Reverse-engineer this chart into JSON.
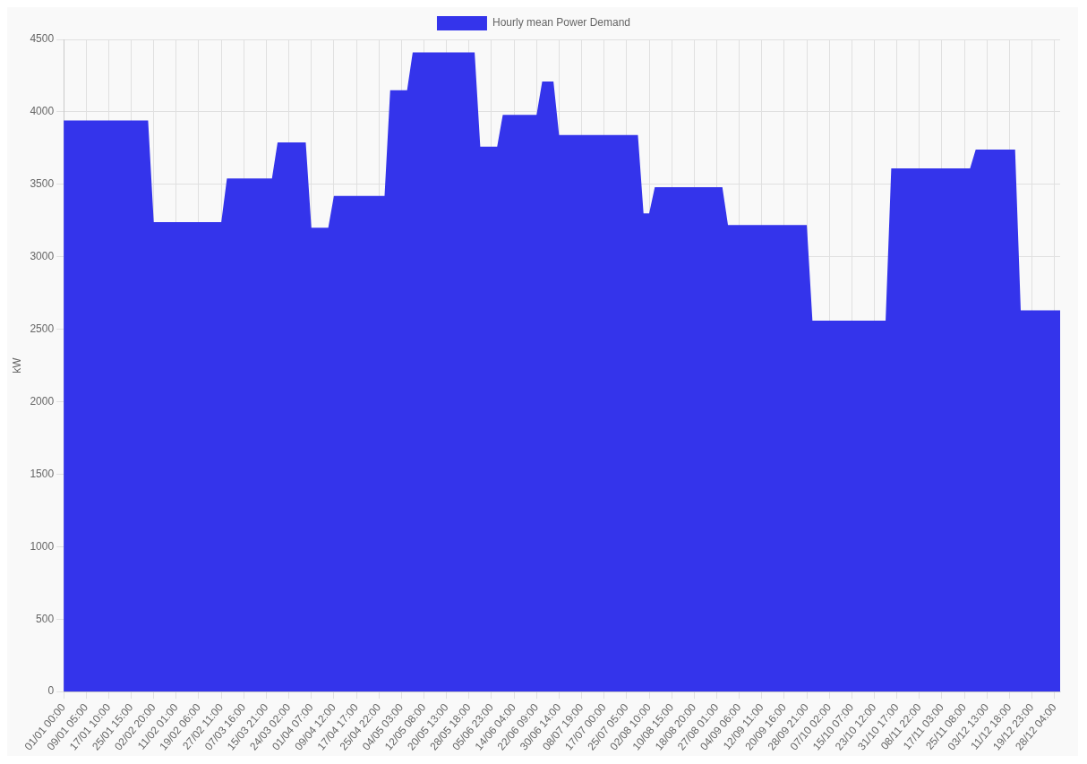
{
  "chart_data": {
    "type": "area",
    "ylabel": "kW",
    "legend": "top",
    "grid": true,
    "categories": [
      "01/01 00:00",
      null,
      null,
      null,
      "09/01 05:00",
      null,
      null,
      null,
      "17/01 10:00",
      null,
      null,
      null,
      "25/01 15:00",
      null,
      null,
      null,
      "02/02 20:00",
      null,
      null,
      null,
      "11/02 01:00",
      null,
      null,
      null,
      "19/02 06:00",
      null,
      null,
      null,
      "27/02 11:00",
      null,
      null,
      null,
      "07/03 16:00",
      null,
      null,
      null,
      "15/03 21:00",
      null,
      null,
      null,
      "24/03 02:00",
      null,
      null,
      null,
      "01/04 07:00",
      null,
      null,
      null,
      "09/04 12:00",
      null,
      null,
      null,
      "17/04 17:00",
      null,
      null,
      null,
      "25/04 22:00",
      null,
      null,
      null,
      "04/05 03:00",
      null,
      null,
      null,
      "12/05 08:00",
      null,
      null,
      null,
      "20/05 13:00",
      null,
      null,
      null,
      "28/05 18:00",
      null,
      null,
      null,
      "05/06 23:00",
      null,
      null,
      null,
      "14/06 04:00",
      null,
      null,
      null,
      "22/06 09:00",
      null,
      null,
      null,
      "30/06 14:00",
      null,
      null,
      null,
      "08/07 19:00",
      null,
      null,
      null,
      "17/07 00:00",
      null,
      null,
      null,
      "25/07 05:00",
      null,
      null,
      null,
      "02/08 10:00",
      null,
      null,
      null,
      "10/08 15:00",
      null,
      null,
      null,
      "18/08 20:00",
      null,
      null,
      null,
      "27/08 01:00",
      null,
      null,
      null,
      "04/09 06:00",
      null,
      null,
      null,
      "12/09 11:00",
      null,
      null,
      null,
      "20/09 16:00",
      null,
      null,
      null,
      "28/09 21:00",
      null,
      null,
      null,
      "07/10 02:00",
      null,
      null,
      null,
      "15/10 07:00",
      null,
      null,
      null,
      "23/10 12:00",
      null,
      null,
      null,
      "31/10 17:00",
      null,
      null,
      null,
      "08/11 22:00",
      null,
      null,
      null,
      "17/11 03:00",
      null,
      null,
      null,
      "25/11 08:00",
      null,
      null,
      null,
      "03/12 13:00",
      null,
      null,
      null,
      "11/12 18:00",
      null,
      null,
      null,
      "19/12 23:00",
      null,
      null,
      null,
      "28/12 04:00",
      null
    ],
    "series": [
      {
        "name": "Hourly mean Power Demand",
        "color": "#3434eb",
        "values": [
          3940,
          3940,
          3940,
          3940,
          3940,
          3940,
          3940,
          3940,
          3940,
          3940,
          3940,
          3940,
          3940,
          3940,
          3940,
          3940,
          3240,
          3240,
          3240,
          3240,
          3240,
          3240,
          3240,
          3240,
          3240,
          3240,
          3240,
          3240,
          3240,
          3540,
          3540,
          3540,
          3540,
          3540,
          3540,
          3540,
          3540,
          3540,
          3790,
          3790,
          3790,
          3790,
          3790,
          3790,
          3200,
          3200,
          3200,
          3200,
          3420,
          3420,
          3420,
          3420,
          3420,
          3420,
          3420,
          3420,
          3420,
          3420,
          4150,
          4150,
          4150,
          4150,
          4410,
          4410,
          4410,
          4410,
          4410,
          4410,
          4410,
          4410,
          4410,
          4410,
          4410,
          4410,
          3760,
          3760,
          3760,
          3760,
          3980,
          3980,
          3980,
          3980,
          3980,
          3980,
          3980,
          4210,
          4210,
          4210,
          3840,
          3840,
          3840,
          3840,
          3840,
          3840,
          3840,
          3840,
          3840,
          3840,
          3840,
          3840,
          3840,
          3840,
          3840,
          3300,
          3300,
          3480,
          3480,
          3480,
          3480,
          3480,
          3480,
          3480,
          3480,
          3480,
          3480,
          3480,
          3480,
          3480,
          3220,
          3220,
          3220,
          3220,
          3220,
          3220,
          3220,
          3220,
          3220,
          3220,
          3220,
          3220,
          3220,
          3220,
          3220,
          2560,
          2560,
          2560,
          2560,
          2560,
          2560,
          2560,
          2560,
          2560,
          2560,
          2560,
          2560,
          2560,
          2560,
          3610,
          3610,
          3610,
          3610,
          3610,
          3610,
          3610,
          3610,
          3610,
          3610,
          3610,
          3610,
          3610,
          3610,
          3610,
          3740,
          3740,
          3740,
          3740,
          3740,
          3740,
          3740,
          3740,
          2630,
          2630,
          2630,
          2630,
          2630,
          2630,
          2630,
          2630
        ]
      }
    ],
    "ylim": [
      0,
      4500
    ],
    "yticks": [
      0,
      500,
      1000,
      1500,
      2000,
      2500,
      3000,
      3500,
      4000,
      4500
    ]
  }
}
